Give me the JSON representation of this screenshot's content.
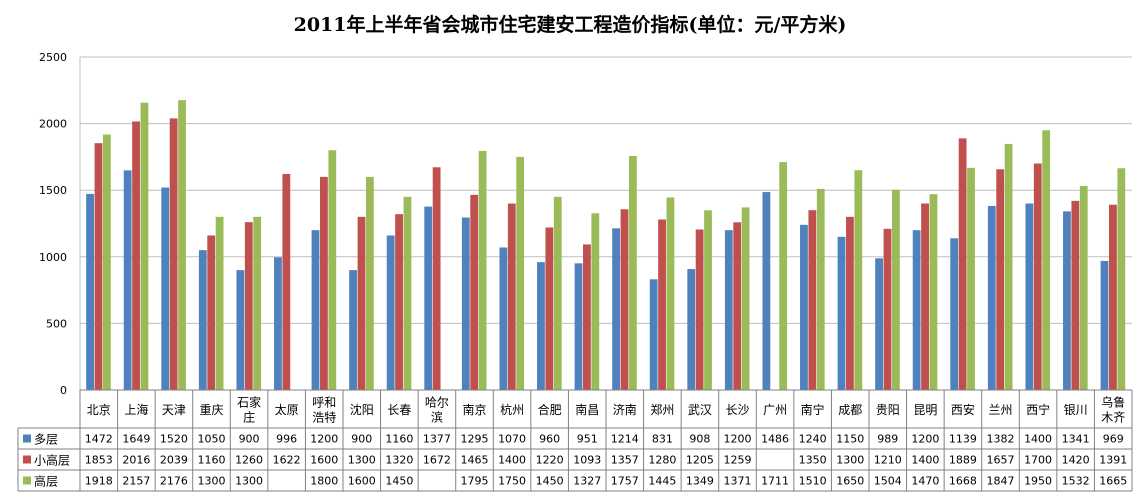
{
  "chart_data": {
    "type": "bar",
    "title": "2011年上半年省会城市住宅建安工程造价指标(单位：元/平方米)",
    "xlabel": "",
    "ylabel": "",
    "ylim": [
      0,
      2500
    ],
    "yticks": [
      0,
      500,
      1000,
      1500,
      2000,
      2500
    ],
    "grid": true,
    "legend": "bottom data table",
    "categories": [
      "北京",
      "上海",
      "天津",
      "重庆",
      "石家庄",
      "太原",
      "呼和浩特",
      "沈阳",
      "长春",
      "哈尔滨",
      "南京",
      "杭州",
      "合肥",
      "南昌",
      "济南",
      "郑州",
      "武汉",
      "长沙",
      "广州",
      "南宁",
      "成都",
      "贵阳",
      "昆明",
      "西安",
      "兰州",
      "西宁",
      "银川",
      "乌鲁木齐"
    ],
    "series": [
      {
        "name": "多层",
        "color": "#4F81BD",
        "values": [
          1472,
          1649,
          1520,
          1050,
          900,
          996,
          1200,
          900,
          1160,
          1377,
          1295,
          1070,
          960,
          951,
          1214,
          831,
          908,
          1200,
          1486,
          1240,
          1150,
          989,
          1200,
          1139,
          1382,
          1400,
          1341,
          969
        ]
      },
      {
        "name": "小高层",
        "color": "#C0504D",
        "values": [
          1853,
          2016,
          2039,
          1160,
          1260,
          1622,
          1600,
          1300,
          1320,
          1672,
          1465,
          1400,
          1220,
          1093,
          1357,
          1280,
          1205,
          1259,
          null,
          1350,
          1300,
          1210,
          1400,
          1889,
          1657,
          1700,
          1420,
          1391
        ]
      },
      {
        "name": "高层",
        "color": "#9BBB59",
        "values": [
          1918,
          2157,
          2176,
          1300,
          1300,
          null,
          1800,
          1600,
          1450,
          null,
          1795,
          1750,
          1450,
          1327,
          1757,
          1445,
          1349,
          1371,
          1711,
          1510,
          1650,
          1504,
          1470,
          1668,
          1847,
          1950,
          1532,
          1665
        ]
      }
    ]
  }
}
